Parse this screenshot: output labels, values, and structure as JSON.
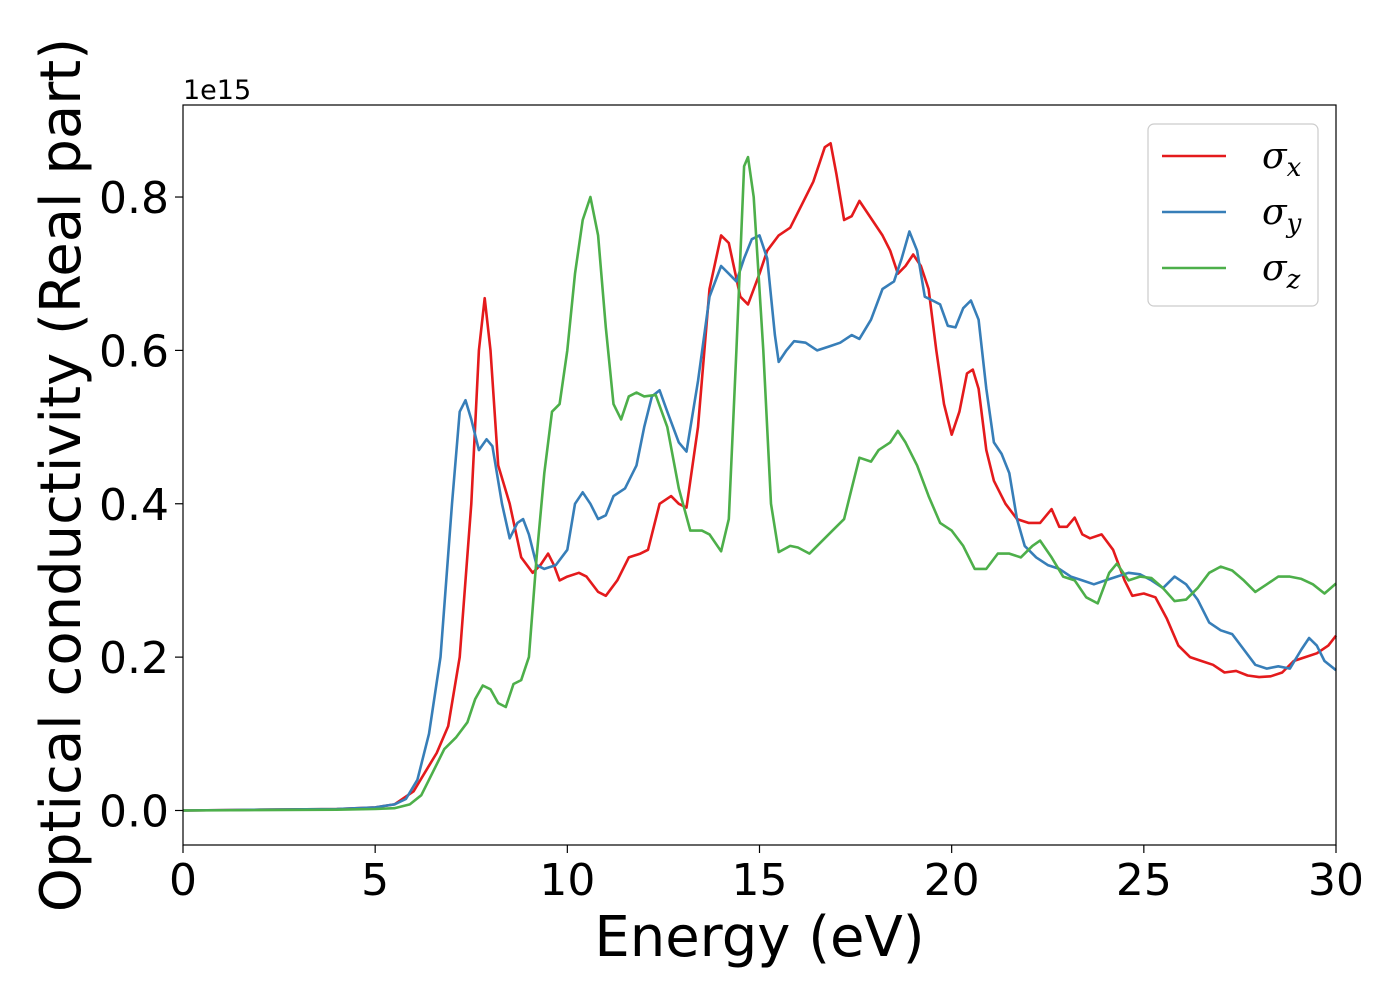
{
  "chart_data": {
    "type": "line",
    "xlabel": "Energy (eV)",
    "ylabel": "Optical conductivity (Real part)",
    "offset_text": "1e15",
    "xlim": [
      0,
      30
    ],
    "ylim": [
      -0.045,
      0.92
    ],
    "x_ticks": [
      0,
      5,
      10,
      15,
      20,
      25,
      30
    ],
    "x_tick_labels": [
      "0",
      "5",
      "10",
      "15",
      "20",
      "25",
      "30"
    ],
    "y_ticks": [
      0.0,
      0.2,
      0.4,
      0.6,
      0.8
    ],
    "y_tick_labels": [
      "0.0",
      "0.2",
      "0.4",
      "0.6",
      "0.8"
    ],
    "grid": false,
    "legend_position": "top-right",
    "series": [
      {
        "name": "σ",
        "subscript": "x",
        "color": "#e41a1c",
        "points": [
          [
            0,
            0
          ],
          [
            2,
            0.001
          ],
          [
            4,
            0.002
          ],
          [
            5,
            0.004
          ],
          [
            5.5,
            0.008
          ],
          [
            6,
            0.025
          ],
          [
            6.3,
            0.05
          ],
          [
            6.6,
            0.075
          ],
          [
            6.9,
            0.11
          ],
          [
            7.2,
            0.2
          ],
          [
            7.5,
            0.4
          ],
          [
            7.7,
            0.6
          ],
          [
            7.85,
            0.668
          ],
          [
            8,
            0.6
          ],
          [
            8.2,
            0.45
          ],
          [
            8.5,
            0.4
          ],
          [
            8.8,
            0.33
          ],
          [
            9.1,
            0.31
          ],
          [
            9.3,
            0.32
          ],
          [
            9.5,
            0.335
          ],
          [
            9.65,
            0.32
          ],
          [
            9.8,
            0.3
          ],
          [
            10,
            0.305
          ],
          [
            10.3,
            0.31
          ],
          [
            10.5,
            0.305
          ],
          [
            10.8,
            0.285
          ],
          [
            11,
            0.28
          ],
          [
            11.3,
            0.3
          ],
          [
            11.6,
            0.33
          ],
          [
            11.9,
            0.335
          ],
          [
            12.1,
            0.34
          ],
          [
            12.4,
            0.4
          ],
          [
            12.7,
            0.41
          ],
          [
            12.9,
            0.4
          ],
          [
            13.1,
            0.395
          ],
          [
            13.4,
            0.5
          ],
          [
            13.7,
            0.68
          ],
          [
            14,
            0.75
          ],
          [
            14.2,
            0.74
          ],
          [
            14.5,
            0.67
          ],
          [
            14.7,
            0.66
          ],
          [
            15,
            0.7
          ],
          [
            15.2,
            0.73
          ],
          [
            15.5,
            0.75
          ],
          [
            15.8,
            0.76
          ],
          [
            16.1,
            0.79
          ],
          [
            16.4,
            0.82
          ],
          [
            16.7,
            0.865
          ],
          [
            16.85,
            0.87
          ],
          [
            17,
            0.83
          ],
          [
            17.2,
            0.77
          ],
          [
            17.4,
            0.775
          ],
          [
            17.6,
            0.795
          ],
          [
            17.8,
            0.78
          ],
          [
            18,
            0.765
          ],
          [
            18.2,
            0.75
          ],
          [
            18.4,
            0.73
          ],
          [
            18.6,
            0.7
          ],
          [
            18.8,
            0.71
          ],
          [
            19,
            0.725
          ],
          [
            19.2,
            0.71
          ],
          [
            19.4,
            0.68
          ],
          [
            19.6,
            0.6
          ],
          [
            19.8,
            0.53
          ],
          [
            20,
            0.49
          ],
          [
            20.2,
            0.52
          ],
          [
            20.4,
            0.57
          ],
          [
            20.55,
            0.575
          ],
          [
            20.7,
            0.55
          ],
          [
            20.9,
            0.47
          ],
          [
            21.1,
            0.43
          ],
          [
            21.4,
            0.4
          ],
          [
            21.7,
            0.38
          ],
          [
            22,
            0.375
          ],
          [
            22.3,
            0.375
          ],
          [
            22.6,
            0.393
          ],
          [
            22.8,
            0.37
          ],
          [
            23,
            0.37
          ],
          [
            23.2,
            0.382
          ],
          [
            23.4,
            0.36
          ],
          [
            23.6,
            0.355
          ],
          [
            23.9,
            0.36
          ],
          [
            24.2,
            0.34
          ],
          [
            24.5,
            0.3
          ],
          [
            24.7,
            0.28
          ],
          [
            25,
            0.283
          ],
          [
            25.3,
            0.278
          ],
          [
            25.6,
            0.25
          ],
          [
            25.9,
            0.215
          ],
          [
            26.2,
            0.2
          ],
          [
            26.5,
            0.195
          ],
          [
            26.8,
            0.19
          ],
          [
            27.1,
            0.18
          ],
          [
            27.4,
            0.182
          ],
          [
            27.7,
            0.176
          ],
          [
            28,
            0.174
          ],
          [
            28.3,
            0.175
          ],
          [
            28.6,
            0.18
          ],
          [
            28.9,
            0.195
          ],
          [
            29.2,
            0.2
          ],
          [
            29.5,
            0.205
          ],
          [
            29.8,
            0.215
          ],
          [
            30,
            0.228
          ]
        ]
      },
      {
        "name": "σ",
        "subscript": "y",
        "color": "#377eb8",
        "points": [
          [
            0,
            0
          ],
          [
            2,
            0.001
          ],
          [
            4,
            0.002
          ],
          [
            5,
            0.004
          ],
          [
            5.5,
            0.008
          ],
          [
            5.8,
            0.015
          ],
          [
            6.1,
            0.04
          ],
          [
            6.4,
            0.1
          ],
          [
            6.7,
            0.2
          ],
          [
            7,
            0.4
          ],
          [
            7.2,
            0.52
          ],
          [
            7.35,
            0.535
          ],
          [
            7.5,
            0.51
          ],
          [
            7.7,
            0.47
          ],
          [
            7.9,
            0.484
          ],
          [
            8.05,
            0.475
          ],
          [
            8.3,
            0.4
          ],
          [
            8.5,
            0.355
          ],
          [
            8.7,
            0.375
          ],
          [
            8.85,
            0.38
          ],
          [
            9,
            0.36
          ],
          [
            9.2,
            0.32
          ],
          [
            9.4,
            0.315
          ],
          [
            9.7,
            0.32
          ],
          [
            10,
            0.34
          ],
          [
            10.2,
            0.4
          ],
          [
            10.4,
            0.415
          ],
          [
            10.6,
            0.4
          ],
          [
            10.8,
            0.38
          ],
          [
            11,
            0.385
          ],
          [
            11.2,
            0.41
          ],
          [
            11.5,
            0.42
          ],
          [
            11.8,
            0.45
          ],
          [
            12,
            0.5
          ],
          [
            12.2,
            0.54
          ],
          [
            12.4,
            0.548
          ],
          [
            12.6,
            0.52
          ],
          [
            12.9,
            0.48
          ],
          [
            13.1,
            0.468
          ],
          [
            13.4,
            0.56
          ],
          [
            13.7,
            0.67
          ],
          [
            14,
            0.71
          ],
          [
            14.2,
            0.7
          ],
          [
            14.4,
            0.69
          ],
          [
            14.6,
            0.72
          ],
          [
            14.8,
            0.745
          ],
          [
            15,
            0.75
          ],
          [
            15.2,
            0.72
          ],
          [
            15.4,
            0.62
          ],
          [
            15.5,
            0.585
          ],
          [
            15.7,
            0.6
          ],
          [
            15.9,
            0.612
          ],
          [
            16.2,
            0.61
          ],
          [
            16.5,
            0.6
          ],
          [
            16.8,
            0.605
          ],
          [
            17.1,
            0.61
          ],
          [
            17.4,
            0.62
          ],
          [
            17.6,
            0.615
          ],
          [
            17.9,
            0.64
          ],
          [
            18.2,
            0.68
          ],
          [
            18.5,
            0.69
          ],
          [
            18.7,
            0.72
          ],
          [
            18.9,
            0.755
          ],
          [
            19.1,
            0.73
          ],
          [
            19.3,
            0.67
          ],
          [
            19.5,
            0.665
          ],
          [
            19.7,
            0.66
          ],
          [
            19.9,
            0.632
          ],
          [
            20.1,
            0.63
          ],
          [
            20.3,
            0.655
          ],
          [
            20.5,
            0.665
          ],
          [
            20.7,
            0.64
          ],
          [
            20.9,
            0.55
          ],
          [
            21.1,
            0.48
          ],
          [
            21.3,
            0.465
          ],
          [
            21.5,
            0.44
          ],
          [
            21.7,
            0.38
          ],
          [
            21.9,
            0.345
          ],
          [
            22.2,
            0.33
          ],
          [
            22.5,
            0.32
          ],
          [
            22.8,
            0.315
          ],
          [
            23.1,
            0.305
          ],
          [
            23.4,
            0.3
          ],
          [
            23.7,
            0.295
          ],
          [
            24,
            0.3
          ],
          [
            24.3,
            0.305
          ],
          [
            24.6,
            0.31
          ],
          [
            24.9,
            0.308
          ],
          [
            25.2,
            0.3
          ],
          [
            25.5,
            0.29
          ],
          [
            25.8,
            0.305
          ],
          [
            26.1,
            0.295
          ],
          [
            26.4,
            0.275
          ],
          [
            26.7,
            0.245
          ],
          [
            27,
            0.235
          ],
          [
            27.3,
            0.23
          ],
          [
            27.6,
            0.21
          ],
          [
            27.9,
            0.19
          ],
          [
            28.2,
            0.185
          ],
          [
            28.5,
            0.188
          ],
          [
            28.8,
            0.185
          ],
          [
            29.1,
            0.21
          ],
          [
            29.3,
            0.225
          ],
          [
            29.5,
            0.215
          ],
          [
            29.7,
            0.195
          ],
          [
            30,
            0.183
          ]
        ]
      },
      {
        "name": "σ",
        "subscript": "z",
        "color": "#4daf4a",
        "points": [
          [
            0,
            0
          ],
          [
            2,
            0.0005
          ],
          [
            4,
            0.001
          ],
          [
            5,
            0.002
          ],
          [
            5.5,
            0.003
          ],
          [
            5.9,
            0.008
          ],
          [
            6.2,
            0.02
          ],
          [
            6.5,
            0.05
          ],
          [
            6.8,
            0.08
          ],
          [
            7.1,
            0.095
          ],
          [
            7.4,
            0.115
          ],
          [
            7.6,
            0.145
          ],
          [
            7.8,
            0.163
          ],
          [
            8,
            0.158
          ],
          [
            8.2,
            0.14
          ],
          [
            8.4,
            0.135
          ],
          [
            8.6,
            0.165
          ],
          [
            8.8,
            0.17
          ],
          [
            9,
            0.2
          ],
          [
            9.2,
            0.33
          ],
          [
            9.4,
            0.44
          ],
          [
            9.6,
            0.52
          ],
          [
            9.8,
            0.53
          ],
          [
            10,
            0.6
          ],
          [
            10.2,
            0.7
          ],
          [
            10.4,
            0.77
          ],
          [
            10.6,
            0.8
          ],
          [
            10.8,
            0.75
          ],
          [
            11,
            0.63
          ],
          [
            11.2,
            0.53
          ],
          [
            11.4,
            0.51
          ],
          [
            11.6,
            0.54
          ],
          [
            11.8,
            0.545
          ],
          [
            12,
            0.54
          ],
          [
            12.3,
            0.542
          ],
          [
            12.6,
            0.5
          ],
          [
            12.9,
            0.42
          ],
          [
            13.2,
            0.365
          ],
          [
            13.5,
            0.365
          ],
          [
            13.7,
            0.36
          ],
          [
            14,
            0.338
          ],
          [
            14.2,
            0.38
          ],
          [
            14.4,
            0.6
          ],
          [
            14.6,
            0.84
          ],
          [
            14.7,
            0.852
          ],
          [
            14.85,
            0.8
          ],
          [
            15.1,
            0.6
          ],
          [
            15.3,
            0.4
          ],
          [
            15.5,
            0.337
          ],
          [
            15.8,
            0.345
          ],
          [
            16,
            0.343
          ],
          [
            16.3,
            0.335
          ],
          [
            16.6,
            0.35
          ],
          [
            16.9,
            0.365
          ],
          [
            17.2,
            0.38
          ],
          [
            17.4,
            0.42
          ],
          [
            17.6,
            0.46
          ],
          [
            17.9,
            0.455
          ],
          [
            18.1,
            0.47
          ],
          [
            18.4,
            0.48
          ],
          [
            18.6,
            0.495
          ],
          [
            18.8,
            0.48
          ],
          [
            19.1,
            0.45
          ],
          [
            19.4,
            0.41
          ],
          [
            19.7,
            0.375
          ],
          [
            20,
            0.365
          ],
          [
            20.3,
            0.345
          ],
          [
            20.6,
            0.315
          ],
          [
            20.9,
            0.315
          ],
          [
            21.2,
            0.335
          ],
          [
            21.5,
            0.335
          ],
          [
            21.8,
            0.33
          ],
          [
            22.1,
            0.345
          ],
          [
            22.3,
            0.352
          ],
          [
            22.6,
            0.33
          ],
          [
            22.9,
            0.305
          ],
          [
            23.2,
            0.3
          ],
          [
            23.5,
            0.278
          ],
          [
            23.8,
            0.27
          ],
          [
            24.1,
            0.31
          ],
          [
            24.3,
            0.322
          ],
          [
            24.6,
            0.3
          ],
          [
            24.9,
            0.305
          ],
          [
            25.2,
            0.303
          ],
          [
            25.5,
            0.29
          ],
          [
            25.8,
            0.273
          ],
          [
            26.1,
            0.275
          ],
          [
            26.4,
            0.29
          ],
          [
            26.7,
            0.31
          ],
          [
            27,
            0.318
          ],
          [
            27.3,
            0.313
          ],
          [
            27.6,
            0.3
          ],
          [
            27.9,
            0.285
          ],
          [
            28.2,
            0.295
          ],
          [
            28.5,
            0.305
          ],
          [
            28.8,
            0.305
          ],
          [
            29.1,
            0.302
          ],
          [
            29.4,
            0.295
          ],
          [
            29.7,
            0.283
          ],
          [
            30,
            0.296
          ]
        ]
      }
    ]
  }
}
